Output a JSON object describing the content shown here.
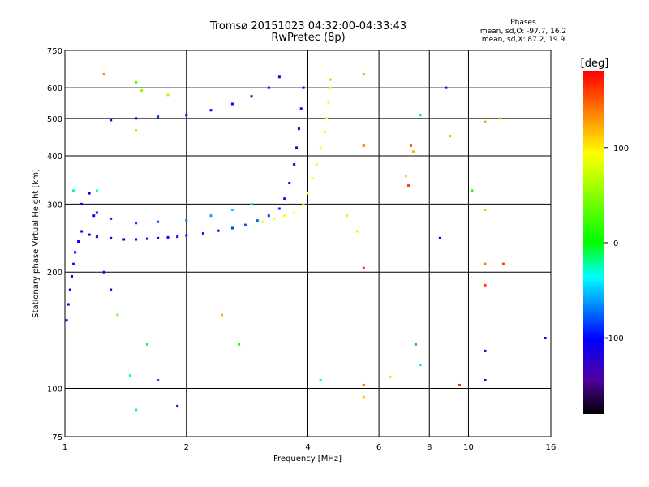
{
  "chart_data": {
    "type": "scatter",
    "title": "Tromsø 20151023 04:32:00-04:33:43",
    "subtitle": "RwPretec (8p)",
    "xlabel": "Frequency [MHz]",
    "ylabel": "Stationary phase Virtual Height [km]",
    "x_scale": "log",
    "y_scale": "log",
    "xlim": [
      1,
      16
    ],
    "ylim": [
      75,
      750
    ],
    "x_ticks": [
      1,
      2,
      4,
      6,
      8,
      10,
      16
    ],
    "y_ticks": [
      75,
      100,
      200,
      300,
      400,
      500,
      600,
      750
    ],
    "grid": true,
    "stats": {
      "heading": "Phases",
      "o_line": "mean, sd,O: -97.7, 16.2",
      "x_line": "mean, sd,X:  87.2, 19.9"
    },
    "colorbar": {
      "label": "[deg]",
      "range": [
        -180,
        180
      ],
      "ticks": [
        100,
        0,
        -100
      ],
      "colors": [
        "#ff0000",
        "#ff8000",
        "#ffff00",
        "#00ff00",
        "#00ffff",
        "#0000ff",
        "#5000a0",
        "#000000"
      ]
    },
    "series": [
      {
        "points": [
          [
            1.01,
            150,
            -110
          ],
          [
            1.02,
            165,
            -105
          ],
          [
            1.03,
            180,
            -100
          ],
          [
            1.04,
            195,
            -100
          ],
          [
            1.05,
            210,
            -95
          ],
          [
            1.06,
            225,
            -100
          ],
          [
            1.08,
            240,
            -105
          ],
          [
            1.1,
            255,
            -100
          ],
          [
            1.15,
            250,
            -110
          ],
          [
            1.2,
            247,
            -115
          ],
          [
            1.3,
            245,
            -110
          ],
          [
            1.4,
            243,
            -105
          ],
          [
            1.5,
            243,
            -110
          ],
          [
            1.6,
            244,
            -110
          ],
          [
            1.7,
            245,
            -105
          ],
          [
            1.8,
            246,
            -100
          ],
          [
            1.9,
            247,
            -100
          ],
          [
            2.0,
            249,
            -95
          ],
          [
            2.2,
            252,
            -90
          ],
          [
            2.4,
            256,
            -90
          ],
          [
            2.6,
            260,
            -85
          ],
          [
            2.8,
            265,
            -80
          ],
          [
            3.0,
            272,
            -75
          ],
          [
            3.2,
            280,
            -85
          ],
          [
            3.4,
            292,
            -90
          ],
          [
            3.5,
            310,
            -95
          ],
          [
            3.6,
            340,
            -100
          ],
          [
            3.7,
            380,
            -105
          ],
          [
            3.75,
            420,
            -110
          ],
          [
            3.8,
            470,
            -110
          ],
          [
            3.85,
            530,
            -110
          ],
          [
            3.9,
            600,
            -105
          ],
          [
            1.1,
            300,
            -100
          ],
          [
            1.2,
            285,
            -95
          ],
          [
            1.3,
            275,
            -90
          ],
          [
            1.5,
            268,
            -85
          ],
          [
            1.7,
            270,
            -80
          ],
          [
            2.0,
            272,
            -70
          ],
          [
            2.3,
            280,
            -60
          ],
          [
            2.6,
            290,
            -50
          ],
          [
            2.9,
            300,
            -40
          ],
          [
            1.3,
            495,
            -110
          ],
          [
            1.5,
            500,
            -105
          ],
          [
            1.7,
            505,
            -90
          ],
          [
            2.0,
            510,
            -95
          ],
          [
            2.3,
            525,
            -100
          ],
          [
            2.6,
            545,
            -100
          ],
          [
            2.9,
            570,
            -105
          ],
          [
            3.2,
            600,
            -110
          ],
          [
            3.4,
            640,
            -115
          ],
          [
            1.15,
            320,
            -110
          ],
          [
            1.18,
            280,
            -100
          ],
          [
            1.25,
            200,
            -100
          ],
          [
            1.3,
            180,
            -95
          ]
        ]
      },
      {
        "points": [
          [
            3.1,
            270,
            95
          ],
          [
            3.3,
            275,
            95
          ],
          [
            3.5,
            280,
            95
          ],
          [
            3.7,
            285,
            95
          ],
          [
            3.9,
            300,
            92
          ],
          [
            4.0,
            320,
            92
          ],
          [
            4.1,
            350,
            95
          ],
          [
            4.2,
            380,
            95
          ],
          [
            4.3,
            420,
            92
          ],
          [
            4.4,
            460,
            95
          ],
          [
            4.45,
            500,
            97
          ],
          [
            4.5,
            550,
            95
          ],
          [
            4.55,
            600,
            100
          ],
          [
            4.55,
            630,
            110
          ]
        ]
      },
      {
        "points": [
          [
            1.25,
            650,
            140
          ],
          [
            1.5,
            620,
            20
          ],
          [
            1.55,
            590,
            50
          ],
          [
            1.5,
            465,
            40
          ],
          [
            1.8,
            575,
            60
          ],
          [
            2.45,
            155,
            120
          ],
          [
            2.7,
            130,
            10
          ],
          [
            4.3,
            105,
            -20
          ],
          [
            5.0,
            280,
            100
          ],
          [
            5.3,
            255,
            80
          ],
          [
            5.5,
            205,
            160
          ],
          [
            5.5,
            102,
            150
          ],
          [
            5.5,
            95,
            110
          ],
          [
            5.5,
            650,
            130
          ],
          [
            5.5,
            425,
            140
          ],
          [
            6.4,
            107,
            100
          ],
          [
            7.0,
            355,
            110
          ],
          [
            7.1,
            335,
            160
          ],
          [
            7.2,
            425,
            150
          ],
          [
            7.4,
            130,
            -60
          ],
          [
            7.6,
            510,
            -20
          ],
          [
            7.6,
            115,
            -40
          ],
          [
            8.5,
            245,
            -110
          ],
          [
            8.8,
            600,
            -120
          ],
          [
            9.0,
            450,
            120
          ],
          [
            9.5,
            102,
            170
          ],
          [
            11.0,
            185,
            160
          ],
          [
            11.0,
            210,
            140
          ],
          [
            11.0,
            125,
            -110
          ],
          [
            11.0,
            105,
            -110
          ],
          [
            11.0,
            290,
            50
          ],
          [
            11.0,
            490,
            120
          ],
          [
            12.0,
            500,
            110
          ],
          [
            12.2,
            210,
            160
          ],
          [
            15.5,
            135,
            -110
          ],
          [
            1.05,
            325,
            -20
          ],
          [
            1.2,
            325,
            -30
          ],
          [
            1.7,
            105,
            -80
          ],
          [
            1.9,
            90,
            -120
          ],
          [
            1.5,
            88,
            -20
          ],
          [
            1.6,
            130,
            -10
          ],
          [
            1.45,
            108,
            -30
          ],
          [
            1.35,
            155,
            40
          ],
          [
            10.2,
            325,
            0
          ],
          [
            7.3,
            410,
            120
          ]
        ]
      }
    ]
  }
}
